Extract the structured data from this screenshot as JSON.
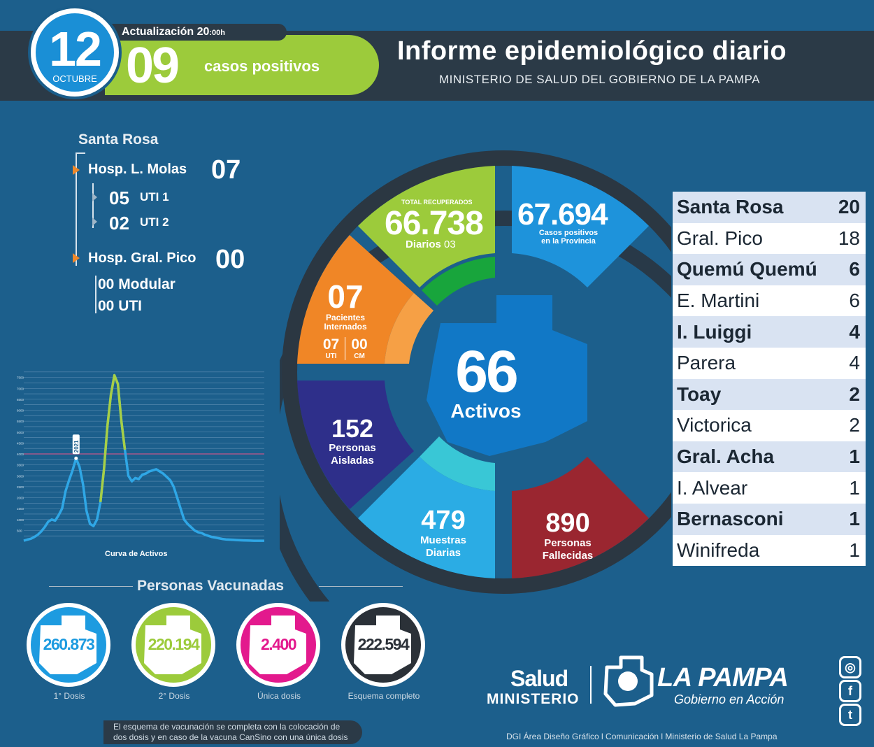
{
  "header": {
    "date_day": "12",
    "date_month": "OCTUBRE",
    "update_label": "Actualización 20",
    "update_suffix": ":00h",
    "positive_cases": "09",
    "positive_label": "casos positivos",
    "title": "Informe epidemiológico diario",
    "subtitle": "MINISTERIO DE SALUD DEL GOBIERNO DE LA PAMPA"
  },
  "hospitals": {
    "city": "Santa Rosa",
    "molas": {
      "name": "Hosp. L. Molas",
      "value": "07",
      "uti1_val": "05",
      "uti1_lbl": "UTI 1",
      "uti2_val": "02",
      "uti2_lbl": "UTI 2"
    },
    "pico": {
      "name": "Hosp. Gral. Pico",
      "value": "00",
      "modular": "00 Modular",
      "uti": "00 UTI"
    }
  },
  "chart_data": {
    "type": "line",
    "title": "Curva de Activos",
    "annotation": "2021",
    "ylim": [
      0,
      8000
    ],
    "yticks": [
      "500",
      "1000",
      "1500",
      "2000",
      "2500",
      "3000",
      "3500",
      "4000",
      "4500",
      "5000",
      "5500",
      "6000",
      "6500",
      "7000",
      "7500"
    ],
    "x": [
      0,
      5,
      10,
      15,
      20,
      25,
      30,
      35,
      40,
      45,
      50,
      55,
      60,
      65,
      70,
      75,
      80,
      85,
      90,
      95,
      100,
      105,
      110,
      115,
      120,
      125,
      130,
      135,
      140,
      145,
      150,
      155,
      160,
      165,
      170,
      175,
      180,
      185,
      190,
      195,
      200,
      205,
      210,
      215,
      220,
      225,
      230,
      235,
      240,
      245,
      250,
      255,
      260,
      265,
      270,
      275,
      280,
      285,
      290,
      295,
      300,
      305,
      310,
      315,
      320,
      325,
      330,
      335,
      340,
      345
    ],
    "y": [
      30,
      80,
      120,
      200,
      300,
      450,
      650,
      900,
      1000,
      950,
      1200,
      1500,
      2300,
      2800,
      3250,
      3800,
      3400,
      2600,
      1400,
      800,
      700,
      1000,
      1800,
      3300,
      5300,
      6700,
      7600,
      7200,
      5500,
      4200,
      3000,
      2750,
      2900,
      2850,
      3050,
      3100,
      3200,
      3250,
      3300,
      3200,
      3100,
      2950,
      2800,
      2500,
      2000,
      1500,
      1000,
      800,
      650,
      500,
      420,
      380,
      300,
      250,
      200,
      170,
      140,
      110,
      90,
      80,
      70,
      60,
      50,
      45,
      40,
      35,
      30,
      30,
      30,
      30
    ]
  },
  "ring": {
    "recuperados_label": "TOTAL RECUPERADOS",
    "recuperados_value": "66.738",
    "recuperados_daily_label": "Diarios",
    "recuperados_daily_value": "03",
    "positivos_value": "67.694",
    "positivos_label1": "Casos positivos",
    "positivos_label2": "en la Provincia",
    "internados_value": "07",
    "internados_label1": "Pacientes",
    "internados_label2": "Internados",
    "uti_value": "07",
    "uti_label": "UTI",
    "cm_value": "00",
    "cm_label": "CM",
    "aisladas_value": "152",
    "aisladas_label1": "Personas",
    "aisladas_label2": "Aisladas",
    "muestras_value": "479",
    "muestras_label1": "Muestras",
    "muestras_label2": "Diarias",
    "fallecidas_value": "890",
    "fallecidas_label1": "Personas",
    "fallecidas_label2": "Fallecidas",
    "activos_value": "66",
    "activos_label": "Activos"
  },
  "localities": [
    {
      "name": "Santa Rosa",
      "value": "20"
    },
    {
      "name": "Gral. Pico",
      "value": "18"
    },
    {
      "name": "Quemú Quemú",
      "value": "6"
    },
    {
      "name": "E. Martini",
      "value": "6"
    },
    {
      "name": "I. Luiggi",
      "value": "4"
    },
    {
      "name": "Parera",
      "value": "4"
    },
    {
      "name": "Toay",
      "value": "2"
    },
    {
      "name": "Victorica",
      "value": "2"
    },
    {
      "name": "Gral. Acha",
      "value": "1"
    },
    {
      "name": "I. Alvear",
      "value": "1"
    },
    {
      "name": "Bernasconi",
      "value": "1"
    },
    {
      "name": "Winifreda",
      "value": "1"
    }
  ],
  "vaccines": {
    "title": "Personas Vacunadas",
    "items": [
      {
        "value": "260.873",
        "label": "1° Dosis",
        "color": "#1d9be0"
      },
      {
        "value": "220.194",
        "label": "2° Dosis",
        "color": "#9ccb3b"
      },
      {
        "value": "2.400",
        "label": "Única dosis",
        "color": "#e3198d"
      },
      {
        "value": "222.594",
        "label": "Esquema completo",
        "color": "#2b3138"
      }
    ],
    "note_line1": "El esquema de vacunación se completa con la colocación de",
    "note_line2": "dos dosis y en caso de la vacuna CanSino con una única dosis"
  },
  "footer": {
    "salud": "Salud",
    "ministerio": "MINISTERIO",
    "la_pampa": "LA PAMPA",
    "gobierno": "Gobierno en Acción",
    "credits": "DGI Área Diseño Gráfico  l Comunicación l Ministerio de Salud La Pampa",
    "social": [
      "instagram-icon",
      "facebook-icon",
      "twitter-icon"
    ]
  }
}
